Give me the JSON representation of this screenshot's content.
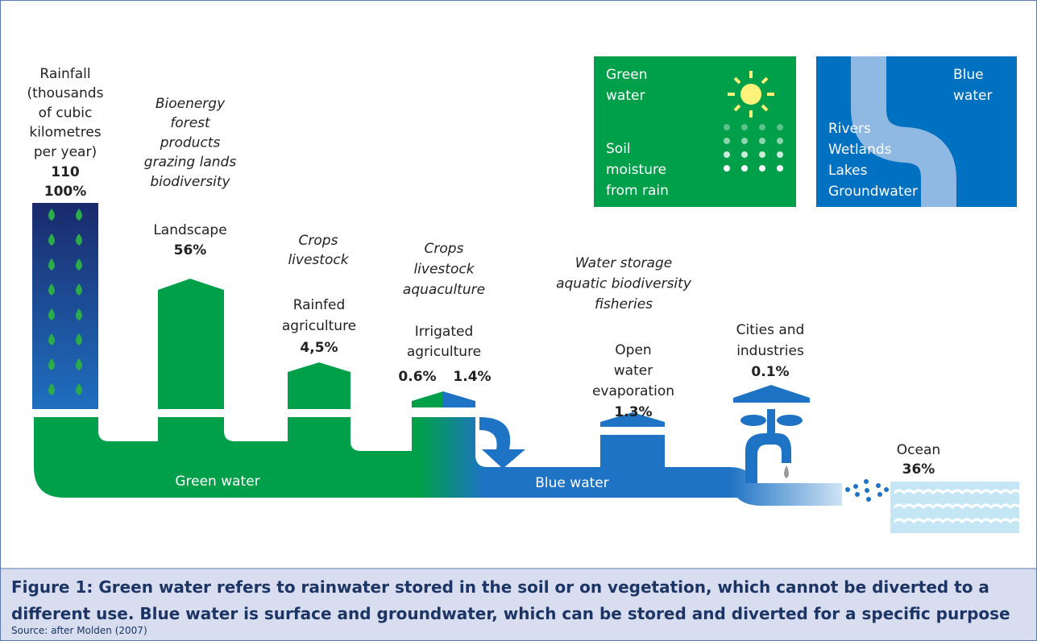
{
  "rainfall": {
    "lines": [
      "Rainfall",
      "(thousands",
      "of cubic",
      "kilometres",
      "per year)"
    ],
    "value": "110",
    "percent": "100%"
  },
  "landscape": {
    "uses": [
      "Bioenergy",
      "forest",
      "products",
      "grazing lands",
      "biodiversity"
    ],
    "name": [
      "Landscape"
    ],
    "percent": "56%"
  },
  "rainfed": {
    "uses": [
      "Crops",
      "livestock"
    ],
    "name": [
      "Rainfed",
      "agriculture"
    ],
    "percent": "4,5%"
  },
  "irrigated": {
    "uses": [
      "Crops",
      "livestock",
      "aquaculture"
    ],
    "name": [
      "Irrigated",
      "agriculture"
    ],
    "green_percent": "0.6%",
    "blue_percent": "1.4%"
  },
  "open_water": {
    "uses": [
      "Water storage",
      "aquatic biodiversity",
      "fisheries"
    ],
    "name": [
      "Open",
      "water",
      "evaporation"
    ],
    "percent": "1.3%"
  },
  "cities": {
    "name": [
      "Cities and",
      "industries"
    ],
    "percent": "0.1%"
  },
  "ocean": {
    "name": "Ocean",
    "percent": "36%"
  },
  "flow_labels": {
    "green": "Green water",
    "blue": "Blue water"
  },
  "green_panel": {
    "title": [
      "Green",
      "water"
    ],
    "text": [
      "Soil",
      "moisture",
      "from rain"
    ]
  },
  "blue_panel": {
    "title": [
      "Blue",
      "water"
    ],
    "text": [
      "Rivers",
      "Wetlands",
      "Lakes",
      "Groundwater"
    ]
  },
  "caption": {
    "lines": [
      "Figure 1: Green water refers to rainwater stored in the soil or on vegetation, which cannot be diverted to a",
      "different use. Blue water is surface and groundwater, which can be stored and diverted for a specific purpose"
    ],
    "source": "Source: after Molden (2007)"
  }
}
